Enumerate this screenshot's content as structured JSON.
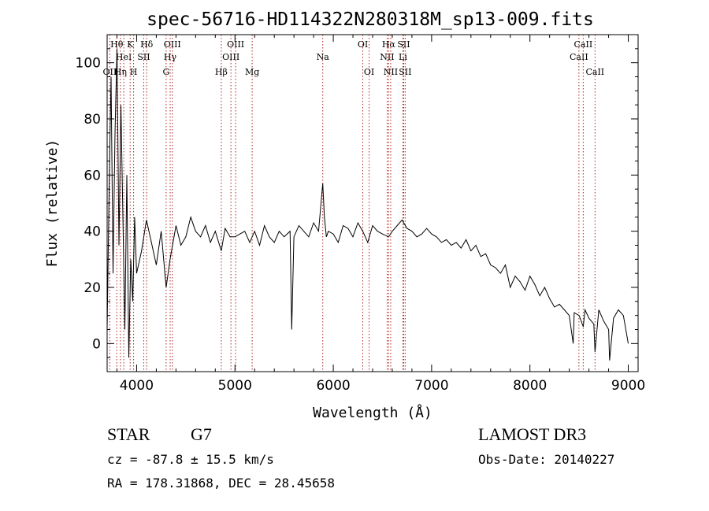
{
  "chart_data": {
    "type": "line",
    "title": "spec-56716-HD114322N280318M_sp13-009.fits",
    "xlabel": "Wavelength (Å)",
    "ylabel": "Flux (relative)",
    "xlim": [
      3700,
      9100
    ],
    "ylim": [
      -10,
      110
    ],
    "xticks": [
      4000,
      5000,
      6000,
      7000,
      8000,
      9000
    ],
    "yticks": [
      0,
      20,
      40,
      60,
      80,
      100
    ],
    "series": [
      {
        "name": "flux",
        "x": [
          3700,
          3720,
          3740,
          3760,
          3780,
          3800,
          3820,
          3840,
          3860,
          3880,
          3900,
          3920,
          3940,
          3960,
          3980,
          4000,
          4050,
          4100,
          4150,
          4200,
          4250,
          4300,
          4340,
          4400,
          4450,
          4500,
          4550,
          4600,
          4650,
          4700,
          4750,
          4800,
          4861,
          4900,
          4950,
          5000,
          5050,
          5100,
          5150,
          5200,
          5250,
          5300,
          5350,
          5400,
          5450,
          5500,
          5560,
          5577,
          5600,
          5650,
          5700,
          5750,
          5800,
          5850,
          5893,
          5910,
          5930,
          5950,
          6000,
          6050,
          6100,
          6150,
          6200,
          6250,
          6300,
          6350,
          6400,
          6450,
          6500,
          6563,
          6600,
          6650,
          6700,
          6750,
          6800,
          6850,
          6900,
          6950,
          7000,
          7050,
          7100,
          7150,
          7200,
          7250,
          7300,
          7350,
          7400,
          7450,
          7500,
          7550,
          7600,
          7650,
          7700,
          7750,
          7800,
          7850,
          7900,
          7950,
          8000,
          8050,
          8100,
          8150,
          8200,
          8250,
          8300,
          8350,
          8400,
          8440,
          8450,
          8500,
          8542,
          8560,
          8600,
          8650,
          8662,
          8700,
          8750,
          8800,
          8810,
          8850,
          8900,
          8950,
          9000
        ],
        "y": [
          5,
          55,
          95,
          25,
          75,
          105,
          35,
          85,
          45,
          5,
          60,
          -5,
          30,
          15,
          45,
          25,
          33,
          44,
          36,
          28,
          40,
          20,
          30,
          42,
          35,
          38,
          45,
          40,
          38,
          42,
          36,
          40,
          33,
          41,
          38,
          38,
          39,
          40,
          36,
          40,
          35,
          42,
          38,
          36,
          40,
          38,
          40,
          5,
          38,
          42,
          40,
          38,
          43,
          40,
          57,
          45,
          38,
          40,
          39,
          36,
          42,
          41,
          38,
          43,
          40,
          36,
          42,
          40,
          39,
          38,
          40,
          42,
          44,
          41,
          40,
          38,
          39,
          41,
          39,
          38,
          36,
          37,
          35,
          36,
          34,
          37,
          33,
          35,
          31,
          32,
          28,
          27,
          25,
          28,
          20,
          24,
          22,
          19,
          24,
          21,
          17,
          20,
          16,
          13,
          14,
          12,
          10,
          0,
          11,
          10,
          6,
          12,
          9,
          7,
          -3,
          12,
          8,
          5,
          -6,
          9,
          12,
          10,
          0
        ]
      }
    ],
    "lines": [
      {
        "wave": 3727,
        "label": "OII",
        "row": 3
      },
      {
        "wave": 3798,
        "label": "Hθ",
        "row": 1
      },
      {
        "wave": 3835,
        "label": "Hη",
        "row": 3
      },
      {
        "wave": 3869,
        "label": "HeI",
        "row": 2
      },
      {
        "wave": 3934,
        "label": "K",
        "row": 1
      },
      {
        "wave": 3969,
        "label": "H",
        "row": 3
      },
      {
        "wave": 4072,
        "label": "SII",
        "row": 2
      },
      {
        "wave": 4102,
        "label": "Hδ",
        "row": 1
      },
      {
        "wave": 4300,
        "label": "G",
        "row": 3
      },
      {
        "wave": 4341,
        "label": "Hγ",
        "row": 2
      },
      {
        "wave": 4363,
        "label": "OIII",
        "row": 1
      },
      {
        "wave": 4861,
        "label": "Hβ",
        "row": 3
      },
      {
        "wave": 4959,
        "label": "OIII",
        "row": 2
      },
      {
        "wave": 5007,
        "label": "OIII",
        "row": 1
      },
      {
        "wave": 5175,
        "label": "Mg",
        "row": 3
      },
      {
        "wave": 5893,
        "label": "Na",
        "row": 2
      },
      {
        "wave": 6300,
        "label": "OI",
        "row": 1
      },
      {
        "wave": 6364,
        "label": "OI",
        "row": 3
      },
      {
        "wave": 6548,
        "label": "NII",
        "row": 2
      },
      {
        "wave": 6563,
        "label": "Hα",
        "row": 1
      },
      {
        "wave": 6584,
        "label": "NII",
        "row": 3
      },
      {
        "wave": 6708,
        "label": "Li",
        "row": 2
      },
      {
        "wave": 6716,
        "label": "SII",
        "row": 1
      },
      {
        "wave": 6731,
        "label": "SII",
        "row": 3
      },
      {
        "wave": 8498,
        "label": "CaII",
        "row": 2
      },
      {
        "wave": 8542,
        "label": "CaII",
        "row": 1
      },
      {
        "wave": 8662,
        "label": "CaII",
        "row": 3
      }
    ]
  },
  "info": {
    "object_class": "STAR",
    "subclass": "G7",
    "survey": "LAMOST DR3",
    "cz": "cz = -87.8 ± 15.5 km/s",
    "obs_date": "Obs-Date: 20140227",
    "coords": "RA = 178.31868, DEC =  28.45658"
  },
  "colors": {
    "line_marker": "#b22222",
    "spectrum": "#000000",
    "axes": "#000000"
  }
}
